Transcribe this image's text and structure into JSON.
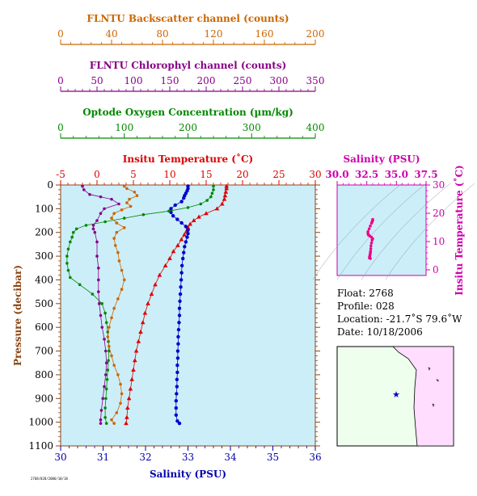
{
  "chart_data": [
    {
      "type": "line",
      "name": "main-profile",
      "y_axis": {
        "label": "Pressure (decibar)",
        "range": [
          0,
          1100
        ],
        "ticks": [
          "0",
          "100",
          "200",
          "300",
          "400",
          "500",
          "600",
          "700",
          "800",
          "900",
          "1000",
          "1100"
        ],
        "color": "#8B4513"
      },
      "axes": {
        "backscatter": {
          "label": "FLNTU Backscatter channel (counts)",
          "range": [
            0,
            200
          ],
          "ticks": [
            "0",
            "40",
            "80",
            "120",
            "160",
            "200"
          ],
          "color": "#CC6600"
        },
        "chlorophyll": {
          "label": "FLNTU Chlorophyl channel (counts)",
          "range": [
            0,
            350
          ],
          "ticks": [
            "0",
            "50",
            "100",
            "150",
            "200",
            "250",
            "300",
            "350"
          ],
          "color": "#880088"
        },
        "oxygen": {
          "label": "Optode Oxygen Concentration (µm/kg)",
          "range": [
            0,
            400
          ],
          "ticks": [
            "0",
            "100",
            "200",
            "300",
            "400"
          ],
          "color": "#008800"
        },
        "temperature": {
          "label": "Insitu Temperature (˚C)",
          "range": [
            -5,
            30
          ],
          "ticks": [
            "-5",
            "0",
            "5",
            "10",
            "15",
            "20",
            "25",
            "30"
          ],
          "color": "#DD0000"
        },
        "salinity": {
          "label": "Salinity (PSU)",
          "range": [
            30,
            36
          ],
          "ticks": [
            "30",
            "31",
            "32",
            "33",
            "34",
            "35",
            "36"
          ],
          "color": "#0000AA"
        }
      },
      "series": [
        {
          "axis": "temperature",
          "color": "#DD0000",
          "marker": "triangle",
          "points": [
            [
              17.8,
              5
            ],
            [
              17.8,
              15
            ],
            [
              17.7,
              30
            ],
            [
              17.6,
              45
            ],
            [
              17.5,
              60
            ],
            [
              17.2,
              80
            ],
            [
              16.5,
              100
            ],
            [
              15.0,
              120
            ],
            [
              14.0,
              135
            ],
            [
              13.3,
              150
            ],
            [
              12.8,
              165
            ],
            [
              12.5,
              180
            ],
            [
              12.3,
              195
            ],
            [
              12.0,
              210
            ],
            [
              11.6,
              230
            ],
            [
              11.1,
              255
            ],
            [
              10.5,
              280
            ],
            [
              10.0,
              310
            ],
            [
              9.4,
              340
            ],
            [
              8.6,
              380
            ],
            [
              8.0,
              420
            ],
            [
              7.5,
              460
            ],
            [
              7.0,
              500
            ],
            [
              6.6,
              540
            ],
            [
              6.3,
              580
            ],
            [
              6.0,
              620
            ],
            [
              5.7,
              660
            ],
            [
              5.4,
              700
            ],
            [
              5.2,
              740
            ],
            [
              5.0,
              780
            ],
            [
              4.8,
              820
            ],
            [
              4.6,
              860
            ],
            [
              4.4,
              900
            ],
            [
              4.2,
              940
            ],
            [
              4.1,
              980
            ],
            [
              4.0,
              1005
            ]
          ]
        },
        {
          "axis": "salinity",
          "color": "#0000CC",
          "marker": "circle",
          "points": [
            [
              33.0,
              5
            ],
            [
              33.0,
              15
            ],
            [
              32.98,
              25
            ],
            [
              32.95,
              35
            ],
            [
              32.92,
              45
            ],
            [
              32.9,
              55
            ],
            [
              32.85,
              70
            ],
            [
              32.7,
              85
            ],
            [
              32.6,
              100
            ],
            [
              32.6,
              115
            ],
            [
              32.65,
              130
            ],
            [
              32.75,
              145
            ],
            [
              32.85,
              160
            ],
            [
              32.95,
              175
            ],
            [
              33.0,
              190
            ],
            [
              33.0,
              205
            ],
            [
              32.98,
              220
            ],
            [
              32.95,
              240
            ],
            [
              32.92,
              260
            ],
            [
              32.9,
              285
            ],
            [
              32.88,
              310
            ],
            [
              32.86,
              340
            ],
            [
              32.85,
              370
            ],
            [
              32.84,
              400
            ],
            [
              32.83,
              430
            ],
            [
              32.82,
              460
            ],
            [
              32.81,
              490
            ],
            [
              32.8,
              520
            ],
            [
              32.8,
              550
            ],
            [
              32.79,
              580
            ],
            [
              32.78,
              610
            ],
            [
              32.77,
              640
            ],
            [
              32.77,
              670
            ],
            [
              32.76,
              700
            ],
            [
              32.76,
              730
            ],
            [
              32.75,
              760
            ],
            [
              32.75,
              790
            ],
            [
              32.74,
              820
            ],
            [
              32.74,
              850
            ],
            [
              32.73,
              880
            ],
            [
              32.72,
              910
            ],
            [
              32.72,
              940
            ],
            [
              32.72,
              970
            ],
            [
              32.75,
              995
            ],
            [
              32.8,
              1005
            ]
          ]
        },
        {
          "axis": "oxygen",
          "color": "#008800",
          "marker": "circle",
          "points": [
            [
              240,
              5
            ],
            [
              240,
              20
            ],
            [
              238,
              35
            ],
            [
              236,
              50
            ],
            [
              230,
              65
            ],
            [
              220,
              80
            ],
            [
              200,
              95
            ],
            [
              170,
              110
            ],
            [
              130,
              125
            ],
            [
              100,
              140
            ],
            [
              70,
              155
            ],
            [
              40,
              170
            ],
            [
              25,
              185
            ],
            [
              20,
              200
            ],
            [
              18,
              220
            ],
            [
              15,
              240
            ],
            [
              12,
              270
            ],
            [
              10,
              300
            ],
            [
              10,
              330
            ],
            [
              12,
              360
            ],
            [
              15,
              390
            ],
            [
              30,
              420
            ],
            [
              50,
              460
            ],
            [
              65,
              500
            ],
            [
              70,
              540
            ],
            [
              72,
              580
            ],
            [
              74,
              620
            ],
            [
              75,
              660
            ],
            [
              76,
              700
            ],
            [
              75,
              740
            ],
            [
              74,
              780
            ],
            [
              73,
              820
            ],
            [
              72,
              860
            ],
            [
              71,
              900
            ],
            [
              70,
              940
            ],
            [
              70,
              980
            ],
            [
              72,
              1005
            ]
          ]
        },
        {
          "axis": "chlorophyll",
          "color": "#880088",
          "marker": "circle",
          "points": [
            [
              30,
              5
            ],
            [
              32,
              20
            ],
            [
              40,
              40
            ],
            [
              55,
              50
            ],
            [
              70,
              60
            ],
            [
              80,
              80
            ],
            [
              60,
              100
            ],
            [
              55,
              120
            ],
            [
              50,
              150
            ],
            [
              45,
              170
            ],
            [
              45,
              185
            ],
            [
              47,
              200
            ],
            [
              50,
              240
            ],
            [
              50,
              300
            ],
            [
              52,
              350
            ],
            [
              52,
              400
            ],
            [
              52,
              450
            ],
            [
              53,
              500
            ],
            [
              55,
              550
            ],
            [
              57,
              600
            ],
            [
              60,
              650
            ],
            [
              62,
              700
            ],
            [
              63,
              750
            ],
            [
              62,
              800
            ],
            [
              60,
              850
            ],
            [
              58,
              900
            ],
            [
              56,
              950
            ],
            [
              55,
              990
            ],
            [
              55,
              1005
            ]
          ]
        },
        {
          "axis": "backscatter",
          "color": "#CC6600",
          "marker": "circle",
          "points": [
            [
              50,
              5
            ],
            [
              52,
              15
            ],
            [
              58,
              30
            ],
            [
              60,
              45
            ],
            [
              54,
              60
            ],
            [
              52,
              75
            ],
            [
              55,
              90
            ],
            [
              48,
              105
            ],
            [
              42,
              120
            ],
            [
              40,
              140
            ],
            [
              44,
              160
            ],
            [
              50,
              180
            ],
            [
              44,
              200
            ],
            [
              42,
              225
            ],
            [
              43,
              255
            ],
            [
              45,
              285
            ],
            [
              46,
              320
            ],
            [
              48,
              360
            ],
            [
              50,
              400
            ],
            [
              48,
              440
            ],
            [
              45,
              480
            ],
            [
              42,
              520
            ],
            [
              40,
              560
            ],
            [
              38,
              600
            ],
            [
              37,
              640
            ],
            [
              38,
              680
            ],
            [
              40,
              720
            ],
            [
              42,
              760
            ],
            [
              45,
              800
            ],
            [
              47,
              840
            ],
            [
              48,
              880
            ],
            [
              47,
              920
            ],
            [
              44,
              960
            ],
            [
              40,
              990
            ],
            [
              42,
              1005
            ]
          ]
        }
      ]
    },
    {
      "type": "scatter",
      "name": "ts-diagram",
      "title": "Salinity (PSU)",
      "x_axis": {
        "label": "Salinity (PSU)",
        "range": [
          30,
          37.5
        ],
        "ticks": [
          "30.0",
          "32.5",
          "35.0",
          "37.5"
        ]
      },
      "y_axis": {
        "label": "Insitu Temperature (˚C)",
        "range": [
          -2,
          30
        ],
        "ticks": [
          "0",
          "10",
          "20",
          "30"
        ]
      },
      "color": "#EE0088",
      "points": [
        [
          33.0,
          17.8
        ],
        [
          33.0,
          17.5
        ],
        [
          32.95,
          17.0
        ],
        [
          32.9,
          16.5
        ],
        [
          32.8,
          15.5
        ],
        [
          32.7,
          14.5
        ],
        [
          32.6,
          13.5
        ],
        [
          32.6,
          12.8
        ],
        [
          32.65,
          12.3
        ],
        [
          32.75,
          12.0
        ],
        [
          32.9,
          11.5
        ],
        [
          33.0,
          11.0
        ],
        [
          32.95,
          10.5
        ],
        [
          32.9,
          9.5
        ],
        [
          32.85,
          8.5
        ],
        [
          32.84,
          7.5
        ],
        [
          32.82,
          6.6
        ],
        [
          32.8,
          6.0
        ],
        [
          32.78,
          5.4
        ],
        [
          32.76,
          5.0
        ],
        [
          32.74,
          4.6
        ],
        [
          32.72,
          4.2
        ],
        [
          32.8,
          4.0
        ]
      ]
    }
  ],
  "info": {
    "float_label": "Float:",
    "float_value": "2768",
    "profile_label": "Profile:",
    "profile_value": "028",
    "location_label": "Location:",
    "location_value": "-21.7˚S  79.6˚W",
    "date_label": "Date:",
    "date_value": "10/18/2006"
  },
  "footer_text": "2768/028/2006/10/18",
  "colors": {
    "plot_bg": "#CCEEF8",
    "sea": "#EEFFEE",
    "land": "#FFDDFF",
    "star": "#0000CC"
  }
}
